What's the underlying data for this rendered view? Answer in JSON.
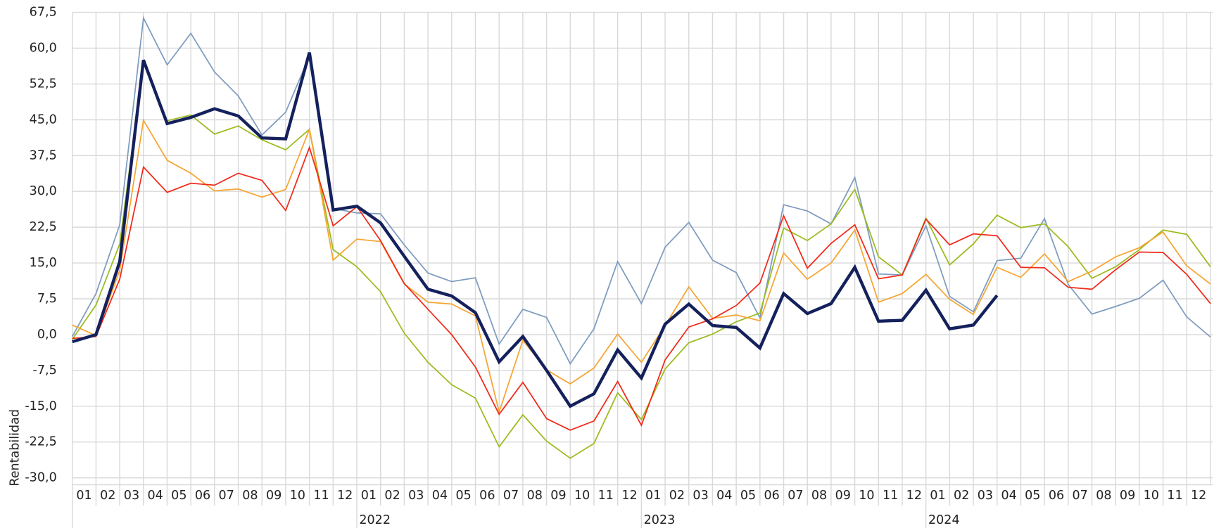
{
  "chart_data": {
    "type": "line",
    "y_label": "Rentabilidad",
    "categories": [
      null,
      "01",
      "02",
      "03",
      "04",
      "05",
      "06",
      "07",
      "08",
      "09",
      "10",
      "11",
      "12",
      "01",
      "02",
      "03",
      "04",
      "05",
      "06",
      "07",
      "08",
      "09",
      "10",
      "11",
      "12",
      "01",
      "02",
      "03",
      "04",
      "05",
      "06",
      "07",
      "08",
      "09",
      "10",
      "11",
      "12",
      "01",
      "02",
      "03",
      "04",
      "05",
      "06",
      "07",
      "08",
      "09",
      "10",
      "11",
      "12"
    ],
    "years": [
      "2022",
      "2023",
      "2024"
    ],
    "ylim": [
      -30,
      67.5
    ],
    "yticks": [
      {
        "value": -30,
        "label": "-30,0"
      },
      {
        "value": -22.5,
        "label": "-22,5"
      },
      {
        "value": -15,
        "label": "-15,0"
      },
      {
        "value": -7.5,
        "label": "-7,5"
      },
      {
        "value": 0,
        "label": "0,0"
      },
      {
        "value": 7.5,
        "label": "7,5"
      },
      {
        "value": 15,
        "label": "15,0"
      },
      {
        "value": 22.5,
        "label": "22,5"
      },
      {
        "value": 30,
        "label": "30,0"
      },
      {
        "value": 37.5,
        "label": "37,5"
      },
      {
        "value": 45,
        "label": "45,0"
      },
      {
        "value": 52.5,
        "label": "52,5"
      },
      {
        "value": 60,
        "label": "60,0"
      },
      {
        "value": 67.5,
        "label": "67,5"
      }
    ],
    "grid": true,
    "series": [
      {
        "color": "#7f9cbf",
        "width": 1.6,
        "values": [
          -0.4,
          8.6,
          23,
          66.3,
          56.5,
          63.1,
          55,
          50,
          41.8,
          46.6,
          58.4,
          26.4,
          25.5,
          25.3,
          18.8,
          12.9,
          11.1,
          11.9,
          -2,
          5.3,
          3.6,
          -6.1,
          1.2,
          15.3,
          6.5,
          18.3,
          23.5,
          15.6,
          13,
          3.5,
          27.2,
          25.9,
          23.2,
          32.9,
          12.7,
          12.5,
          22.8,
          8,
          4.8,
          15.5,
          16,
          24.3,
          10.5,
          4.3,
          5.9,
          7.6,
          11.4,
          3.7,
          -0.5
        ]
      },
      {
        "color": "#9bbb1f",
        "width": 1.6,
        "values": [
          -1,
          6.2,
          19,
          57,
          44.8,
          46,
          42,
          43.7,
          40.8,
          38.7,
          43,
          17.8,
          14.2,
          9,
          0.3,
          -5.8,
          -10.5,
          -13.3,
          -23.5,
          -16.8,
          -22.3,
          -25.9,
          -22.8,
          -12.2,
          -17.8,
          -7.2,
          -1.7,
          0.1,
          2.7,
          4.5,
          22.3,
          19.7,
          23.2,
          30.4,
          16.3,
          12.5,
          24.4,
          14.6,
          19,
          25,
          22.4,
          23.2,
          18.4,
          11.8,
          14.2,
          17.8,
          21.9,
          21,
          14.2
        ]
      },
      {
        "color": "#f6a532",
        "width": 1.6,
        "values": [
          2,
          -0.2,
          13.5,
          44.9,
          36.5,
          33.8,
          30.1,
          30.5,
          28.8,
          30.4,
          43,
          15.6,
          20,
          19.5,
          10.6,
          6.8,
          6.4,
          3.9,
          -16.2,
          -1.2,
          -7.4,
          -10.3,
          -7,
          0.1,
          -5.8,
          1.9,
          10,
          3.4,
          4.1,
          2.9,
          17.1,
          11.6,
          15,
          21.9,
          6.8,
          8.6,
          12.6,
          7.4,
          4.2,
          14.1,
          12,
          16.9,
          11.1,
          13.3,
          16.3,
          18.2,
          21.5,
          14.4,
          10.6
        ]
      },
      {
        "color": "#f02a1a",
        "width": 1.6,
        "values": [
          -0.8,
          -0.4,
          11.6,
          35.1,
          29.8,
          31.7,
          31.3,
          33.8,
          32.3,
          26,
          39.2,
          22.8,
          26.8,
          19.7,
          10.7,
          5.3,
          0,
          -6.8,
          -16.7,
          -10,
          -17.6,
          -20,
          -18.1,
          -9.8,
          -19,
          -5.3,
          1.6,
          3.3,
          6.1,
          10.8,
          24.9,
          13.9,
          19.1,
          23,
          11.7,
          12.5,
          24.2,
          18.8,
          21.1,
          20.7,
          14.1,
          14,
          9.9,
          9.5,
          13.6,
          17.3,
          17.2,
          12.6,
          6.5
        ]
      },
      {
        "color": "#14215c",
        "width": 4,
        "values": [
          -1.5,
          0,
          15.3,
          57.5,
          44.2,
          45.5,
          47.3,
          45.8,
          41.2,
          41,
          59.1,
          26.1,
          26.9,
          23.4,
          16.4,
          9.5,
          8.1,
          4.6,
          -5.7,
          -0.4,
          -7.5,
          -15,
          -12.4,
          -3.2,
          -9.1,
          2.2,
          6.4,
          1.9,
          1.5,
          -2.8,
          8.6,
          4.4,
          6.5,
          14.1,
          2.8,
          3,
          9.3,
          1.2,
          2,
          8.2,
          null,
          null,
          null,
          null,
          null,
          null,
          null,
          null,
          null
        ]
      }
    ]
  }
}
